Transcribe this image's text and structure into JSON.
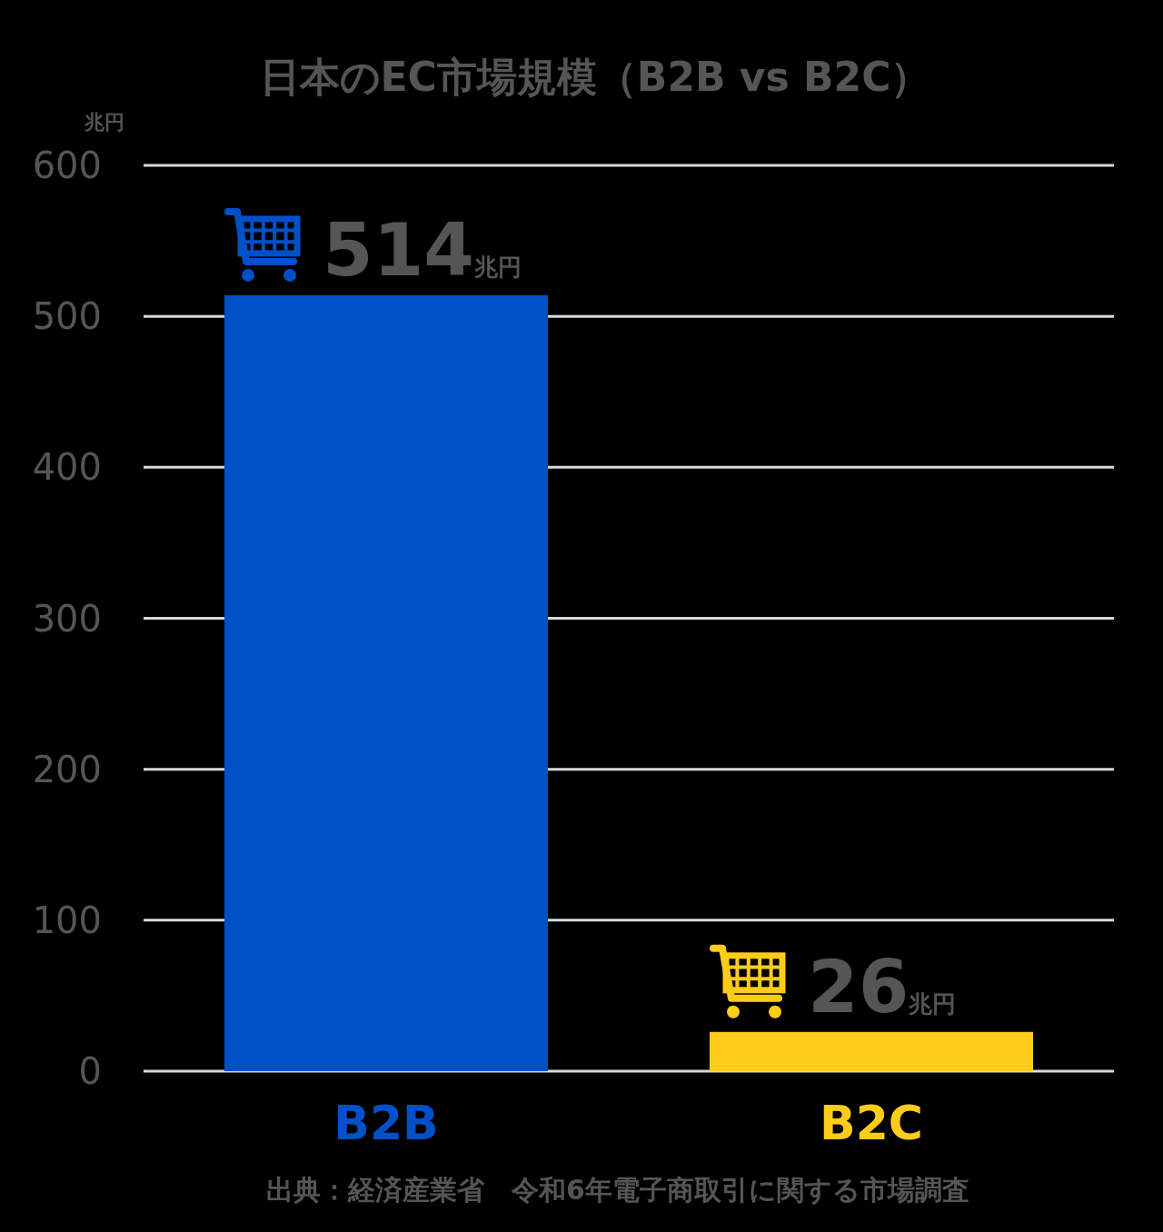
{
  "chart_data": {
    "type": "bar",
    "title": "日本のEC市場規模（B2B vs B2C）",
    "ylabel": "兆円",
    "categories": [
      "B2B",
      "B2C"
    ],
    "values": [
      514,
      26
    ],
    "colors": [
      "#0050c8",
      "#ffcc1a"
    ],
    "value_labels": [
      "514兆円",
      "26兆円"
    ],
    "ylim": [
      0,
      600
    ],
    "yticks": [
      0,
      100,
      200,
      300,
      400,
      500,
      600
    ],
    "grid": "y",
    "annotations": [
      "出典：経済産業省　令和6年電子商取引に関する市場調査"
    ]
  }
}
